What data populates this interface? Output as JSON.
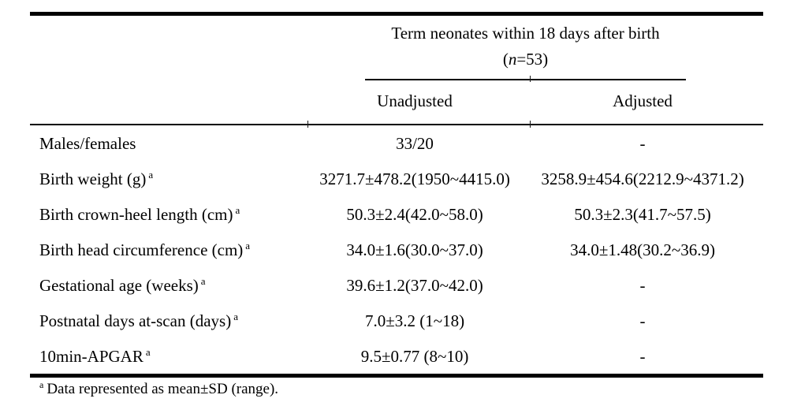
{
  "colors": {
    "text": "#000000",
    "rule": "#000000",
    "background": "#ffffff"
  },
  "table": {
    "group_header": {
      "title": "Term neonates within 18 days after birth",
      "n_open": "(",
      "n_symbol": "n",
      "n_rest": "=53)"
    },
    "column_headers": {
      "unadjusted": "Unadjusted",
      "adjusted": "Adjusted"
    },
    "rows": [
      {
        "label": "Males/females",
        "sup": "",
        "unadjusted": "33/20",
        "adjusted": "-"
      },
      {
        "label": "Birth weight (g)",
        "sup": "a",
        "unadjusted": "3271.7±478.2(1950~4415.0)",
        "adjusted": "3258.9±454.6(2212.9~4371.2)"
      },
      {
        "label": "Birth crown-heel length (cm)",
        "sup": "a",
        "unadjusted": "50.3±2.4(42.0~58.0)",
        "adjusted": "50.3±2.3(41.7~57.5)"
      },
      {
        "label": "Birth head circumference (cm)",
        "sup": "a",
        "unadjusted": "34.0±1.6(30.0~37.0)",
        "adjusted": "34.0±1.48(30.2~36.9)"
      },
      {
        "label": "Gestational age (weeks)",
        "sup": "a",
        "unadjusted": "39.6±1.2(37.0~42.0)",
        "adjusted": "-"
      },
      {
        "label": "Postnatal days at-scan (days)",
        "sup": "a",
        "unadjusted": "7.0±3.2 (1~18)",
        "adjusted": "-"
      },
      {
        "label": "10min-APGAR",
        "sup": "a",
        "unadjusted": "9.5±0.77 (8~10)",
        "adjusted": "-"
      }
    ],
    "footnote": {
      "marker": "a",
      "text": "Data represented as mean±SD (range)."
    }
  }
}
